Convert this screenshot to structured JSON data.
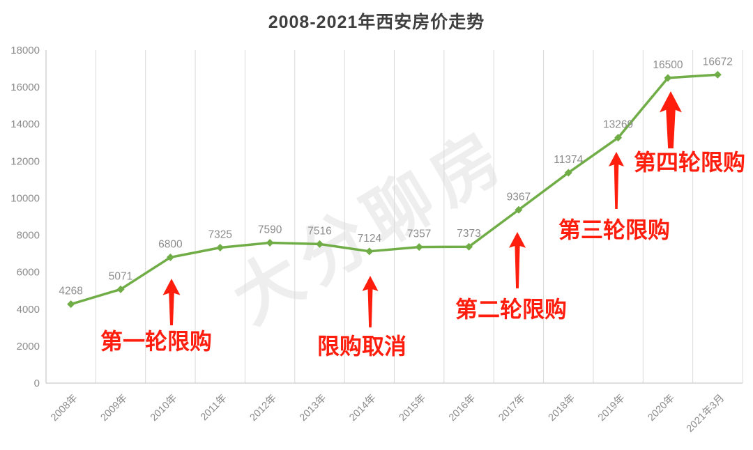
{
  "title": "2008-2021年西安房价走势",
  "watermark": "大分聊房",
  "chart_data": {
    "type": "line",
    "title": "2008-2021年西安房价走势",
    "categories": [
      "2008年",
      "2009年",
      "2010年",
      "2011年",
      "2012年",
      "2013年",
      "2014年",
      "2015年",
      "2016年",
      "2017年",
      "2018年",
      "2019年",
      "2020年",
      "2021年3月"
    ],
    "values": [
      4268,
      5071,
      6800,
      7325,
      7590,
      7516,
      7124,
      7357,
      7373,
      9367,
      11374,
      13269,
      16500,
      16672
    ],
    "ylim": [
      0,
      18000
    ],
    "yticks": [
      0,
      2000,
      4000,
      6000,
      8000,
      10000,
      12000,
      14000,
      16000,
      18000
    ],
    "grid": "vertical",
    "legend": "none",
    "marker": "diamond",
    "line_color": "#70AD47",
    "data_label_color": "#8c8c8c",
    "axis_label_color": "#8c8c8c",
    "grid_color": "#d9d9d9",
    "axis_line_color": "#bfbfbf",
    "annotation_color": "#ff1d0d",
    "annotations": [
      {
        "text": "第一轮限购",
        "target": "2010年"
      },
      {
        "text": "限购取消",
        "target": "2014年"
      },
      {
        "text": "第二轮限购",
        "target": "2017年"
      },
      {
        "text": "第三轮限购",
        "target": "2019年"
      },
      {
        "text": "第四轮限购",
        "target": "2020年"
      }
    ]
  }
}
